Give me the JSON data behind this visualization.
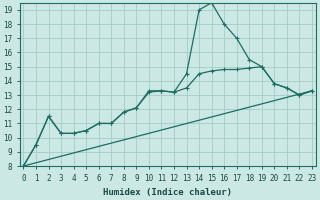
{
  "xlabel": "Humidex (Indice chaleur)",
  "ylabel": "",
  "bg_color": "#cce8e4",
  "grid_color": "#aacfcb",
  "line_color": "#1a6e64",
  "xlim": [
    0,
    23
  ],
  "ylim": [
    8,
    19.5
  ],
  "yticks": [
    8,
    9,
    10,
    11,
    12,
    13,
    14,
    15,
    16,
    17,
    18,
    19
  ],
  "xticks": [
    0,
    1,
    2,
    3,
    4,
    5,
    6,
    7,
    8,
    9,
    10,
    11,
    12,
    13,
    14,
    15,
    16,
    17,
    18,
    19,
    20,
    21,
    22,
    23
  ],
  "line1_x": [
    0,
    1,
    2,
    3,
    4,
    5,
    6,
    7,
    8,
    9,
    10,
    11,
    12,
    13,
    14,
    15,
    16,
    17,
    18,
    19,
    20,
    21,
    22,
    23
  ],
  "line1_y": [
    8.0,
    9.5,
    11.5,
    10.3,
    10.3,
    10.5,
    11.0,
    11.0,
    11.8,
    12.1,
    13.3,
    13.3,
    13.2,
    14.5,
    19.0,
    19.5,
    18.0,
    17.0,
    15.5,
    15.0,
    13.8,
    13.5,
    13.0,
    13.3
  ],
  "line2_x": [
    0,
    1,
    2,
    3,
    4,
    5,
    6,
    7,
    8,
    9,
    10,
    11,
    12,
    13,
    14,
    15,
    16,
    17,
    18,
    19,
    20,
    21,
    22,
    23
  ],
  "line2_y": [
    8.0,
    9.5,
    11.5,
    10.3,
    10.3,
    10.5,
    11.0,
    11.0,
    11.8,
    12.1,
    13.2,
    13.3,
    13.2,
    13.5,
    14.5,
    14.7,
    14.8,
    14.8,
    14.9,
    15.0,
    13.8,
    13.5,
    13.0,
    13.3
  ],
  "line3_x": [
    0,
    23
  ],
  "line3_y": [
    8.0,
    13.3
  ]
}
